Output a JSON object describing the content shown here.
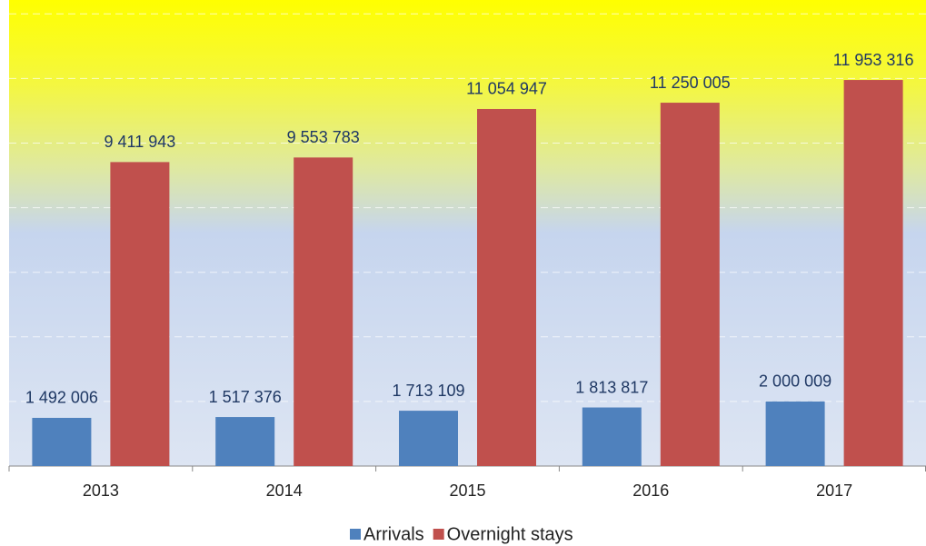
{
  "chart_data": {
    "type": "bar",
    "categories": [
      "2013",
      "2014",
      "2015",
      "2016",
      "2017"
    ],
    "series": [
      {
        "name": "Arrivals",
        "color": "#4f81bd",
        "values": [
          1492006,
          1517376,
          1713109,
          1813817,
          2000009
        ],
        "value_labels": [
          "1 492 006",
          "1 517 376",
          "1 713 109",
          "1 813 817",
          "2 000 009"
        ]
      },
      {
        "name": "Overnight stays",
        "color": "#c0504d",
        "values": [
          9411943,
          9553783,
          11054947,
          11250005,
          11953316
        ],
        "value_labels": [
          "9 411 943",
          "9 553 783",
          "11 054 947",
          "11 250 005",
          "11 953 316"
        ]
      }
    ],
    "ylim": [
      0,
      14430000
    ],
    "yticks": [
      2000000,
      4000000,
      6000000,
      8000000,
      10000000,
      12000000,
      14000000
    ],
    "grid": true,
    "legend": "bottom"
  }
}
